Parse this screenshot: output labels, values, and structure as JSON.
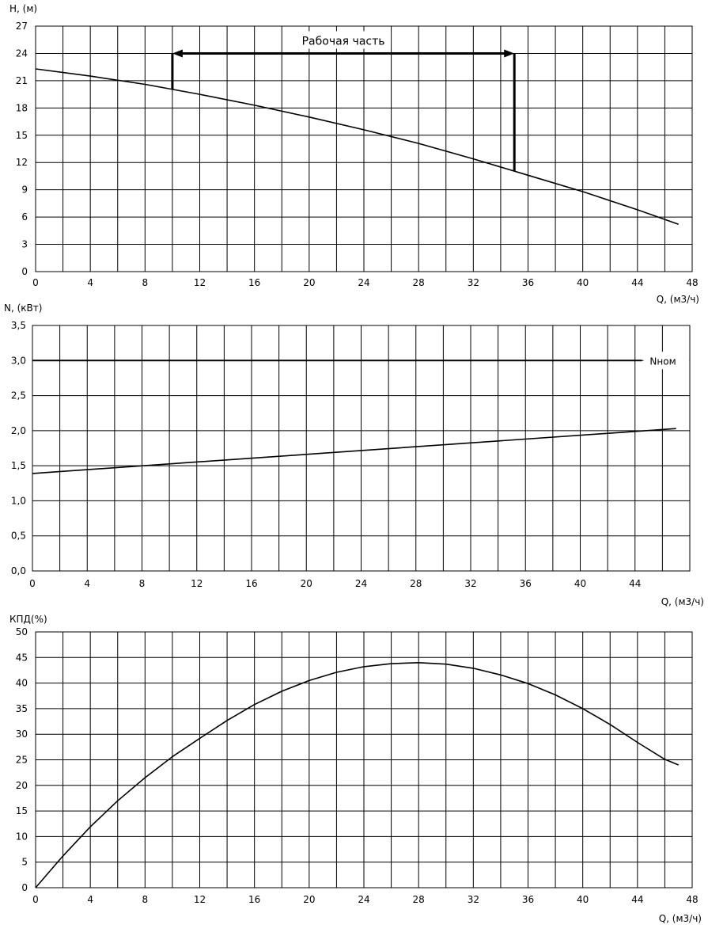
{
  "chart_data": [
    {
      "type": "line",
      "xlabel": "Q, (м3/ч)",
      "ylabel": "H, (м)",
      "xlim": [
        0,
        48
      ],
      "ylim": [
        0,
        27
      ],
      "x_ticks": [
        "0",
        "4",
        "8",
        "12",
        "16",
        "20",
        "24",
        "28",
        "32",
        "36",
        "40",
        "44",
        "48"
      ],
      "y_ticks": [
        "0",
        "3",
        "6",
        "9",
        "12",
        "15",
        "18",
        "21",
        "24",
        "27"
      ],
      "grid": true,
      "series": [
        {
          "x": [
            0,
            4,
            8,
            12,
            16,
            20,
            24,
            28,
            32,
            36,
            40,
            44,
            47
          ],
          "y": [
            22.3,
            21.5,
            20.6,
            19.5,
            18.3,
            17.0,
            15.6,
            14.1,
            12.4,
            10.6,
            8.8,
            6.8,
            5.2
          ]
        }
      ],
      "annotations": [
        {
          "text": "Рабочая часть",
          "x_range": [
            10,
            35
          ],
          "y": 24
        }
      ]
    },
    {
      "type": "line",
      "xlabel": "Q, (м3/ч)",
      "ylabel": "N, (кВт)",
      "xlim": [
        0,
        48
      ],
      "ylim": [
        0,
        3.5
      ],
      "x_ticks": [
        "0",
        "4",
        "8",
        "12",
        "16",
        "20",
        "24",
        "28",
        "32",
        "36",
        "40",
        "44"
      ],
      "y_ticks": [
        "0,0",
        "0,5",
        "1,0",
        "1,5",
        "2,0",
        "2,5",
        "3,0",
        "3,5"
      ],
      "grid": true,
      "series": [
        {
          "x": [
            0,
            47
          ],
          "y": [
            1.39,
            2.03
          ]
        },
        {
          "name": "Nном",
          "x": [
            0,
            44.5
          ],
          "y": [
            3.0,
            3.0
          ]
        }
      ]
    },
    {
      "type": "line",
      "xlabel": "Q, (м3/ч)",
      "ylabel": "КПД(%)",
      "xlim": [
        0,
        48
      ],
      "ylim": [
        0,
        50
      ],
      "x_ticks": [
        "0",
        "4",
        "8",
        "12",
        "16",
        "20",
        "24",
        "28",
        "32",
        "36",
        "40",
        "44",
        "48"
      ],
      "y_ticks": [
        "0",
        "5",
        "10",
        "15",
        "20",
        "25",
        "30",
        "35",
        "40",
        "45",
        "50"
      ],
      "grid": true,
      "series": [
        {
          "x": [
            0,
            2,
            4,
            6,
            8,
            10,
            12,
            14,
            16,
            18,
            20,
            22,
            24,
            26,
            28,
            30,
            32,
            34,
            36,
            38,
            40,
            42,
            44,
            46,
            47
          ],
          "y": [
            0,
            6.2,
            11.9,
            17.0,
            21.5,
            25.6,
            29.2,
            32.7,
            35.8,
            38.4,
            40.5,
            42.1,
            43.2,
            43.8,
            44.0,
            43.7,
            42.9,
            41.6,
            39.9,
            37.7,
            35.0,
            31.9,
            28.4,
            25.1,
            24.0
          ]
        }
      ]
    }
  ]
}
